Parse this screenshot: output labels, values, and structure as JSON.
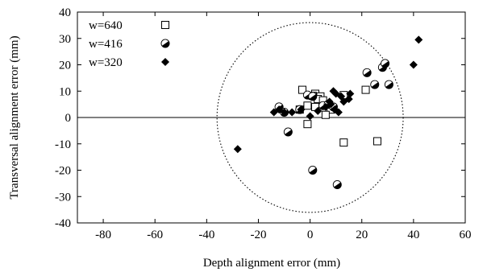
{
  "chart_data": {
    "type": "scatter",
    "xlabel": "Depth alignment error (mm)",
    "ylabel": "Transversal alignment error (mm)",
    "xlim": [
      -90,
      60
    ],
    "ylim": [
      -40,
      40
    ],
    "xticks": [
      -80,
      -60,
      -40,
      -20,
      0,
      20,
      40,
      60
    ],
    "yticks": [
      -40,
      -30,
      -20,
      -10,
      0,
      10,
      20,
      30,
      40
    ],
    "legend_position": "top-left",
    "reference_circle": {
      "center": [
        0,
        0
      ],
      "radius": 36,
      "style": "dotted"
    },
    "zero_line": {
      "y": 0
    },
    "series": [
      {
        "name": "w=640",
        "marker": "open-square",
        "points": [
          [
            -3,
            10.5
          ],
          [
            2,
            9
          ],
          [
            4,
            8
          ],
          [
            1,
            8.2
          ],
          [
            3,
            7
          ],
          [
            5,
            6.5
          ],
          [
            -1,
            4.5
          ],
          [
            2,
            4
          ],
          [
            8,
            3
          ],
          [
            -4,
            3
          ],
          [
            6,
            1
          ],
          [
            -1,
            -2.5
          ],
          [
            13,
            8.5
          ],
          [
            21.5,
            10.5
          ],
          [
            13,
            -9.5
          ],
          [
            26,
            -9
          ]
        ]
      },
      {
        "name": "w=416",
        "marker": "circle-half",
        "points": [
          [
            -12,
            4
          ],
          [
            -10,
            2
          ],
          [
            -8.5,
            -5.5
          ],
          [
            -4,
            3
          ],
          [
            -1,
            8.5
          ],
          [
            1,
            8
          ],
          [
            5,
            4.5
          ],
          [
            7,
            5
          ],
          [
            9,
            4
          ],
          [
            10.5,
            -25.5
          ],
          [
            1,
            -20
          ],
          [
            22,
            17
          ],
          [
            25,
            12.5
          ],
          [
            28,
            19
          ],
          [
            29,
            20.5
          ],
          [
            30.5,
            12.5
          ]
        ]
      },
      {
        "name": "w=320",
        "marker": "filled-diamond",
        "points": [
          [
            -14,
            2
          ],
          [
            -12,
            3
          ],
          [
            -10,
            2
          ],
          [
            -7,
            2
          ],
          [
            -3.5,
            3
          ],
          [
            0,
            0.5
          ],
          [
            3,
            2.5
          ],
          [
            6,
            4
          ],
          [
            7.5,
            6
          ],
          [
            8,
            5
          ],
          [
            9,
            10
          ],
          [
            10,
            9
          ],
          [
            12,
            8
          ],
          [
            13,
            6
          ],
          [
            15,
            7
          ],
          [
            15.5,
            9
          ],
          [
            9.5,
            3
          ],
          [
            11,
            2
          ],
          [
            -28,
            -12
          ],
          [
            40,
            20
          ],
          [
            42,
            29.5
          ]
        ]
      }
    ]
  }
}
